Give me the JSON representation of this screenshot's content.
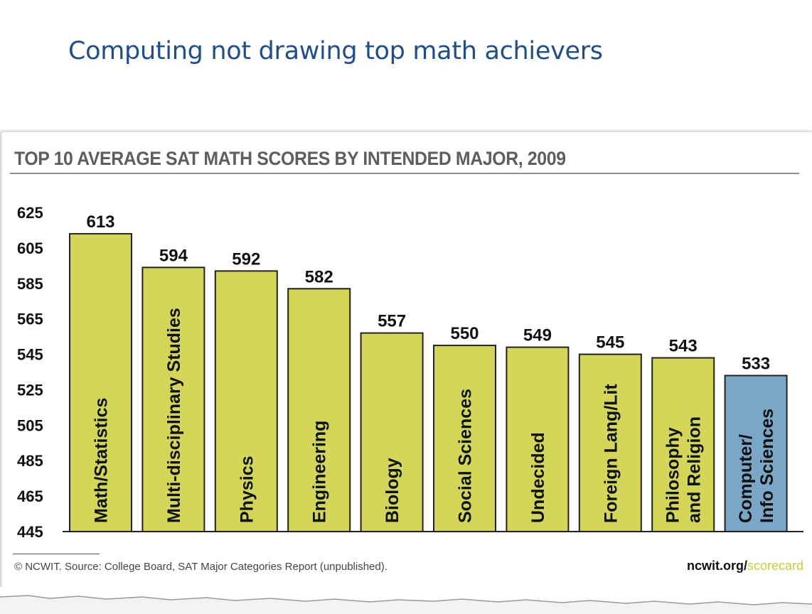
{
  "slide": {
    "title": "Computing not drawing top math achievers"
  },
  "chart_data": {
    "type": "bar",
    "title": "TOP 10 AVERAGE SAT MATH SCORES BY INTENDED MAJOR, 2009",
    "xlabel": "",
    "ylabel": "",
    "categories": [
      "Math/Statistics",
      "Multi-disciplinary Studies",
      "Physics",
      "Engineering",
      "Biology",
      "Social Sciences",
      "Undecided",
      "Foreign Lang/Lit",
      "Philosophy and Religion",
      "Computer/ Info Sciences"
    ],
    "category_lines": [
      [
        "Math/Statistics"
      ],
      [
        "Multi-disciplinary Studies"
      ],
      [
        "Physics"
      ],
      [
        "Engineering"
      ],
      [
        "Biology"
      ],
      [
        "Social Sciences"
      ],
      [
        "Undecided"
      ],
      [
        "Foreign Lang/Lit"
      ],
      [
        "Philosophy",
        "and Religion"
      ],
      [
        "Computer/",
        "Info Sciences"
      ]
    ],
    "values": [
      613,
      594,
      592,
      582,
      557,
      550,
      549,
      545,
      543,
      533
    ],
    "bar_colors": [
      "#d3d657",
      "#d3d657",
      "#d3d657",
      "#d3d657",
      "#d3d657",
      "#d3d657",
      "#d3d657",
      "#d3d657",
      "#d3d657",
      "#7ba7c6"
    ],
    "yticks": [
      445,
      465,
      485,
      505,
      525,
      545,
      565,
      585,
      605,
      625
    ],
    "ylim": [
      445,
      625
    ],
    "grid": false,
    "legend": "none"
  },
  "footer": {
    "source": "© NCWIT. Source: College Board, SAT Major Categories Report (unpublished).",
    "brand_main": "ncwit.org/",
    "brand_accent": "scorecard"
  },
  "colors": {
    "title": "#1f4e8c",
    "bar_default": "#d3d657",
    "bar_highlight": "#7ba7c6",
    "bar_edge": "#222222"
  }
}
